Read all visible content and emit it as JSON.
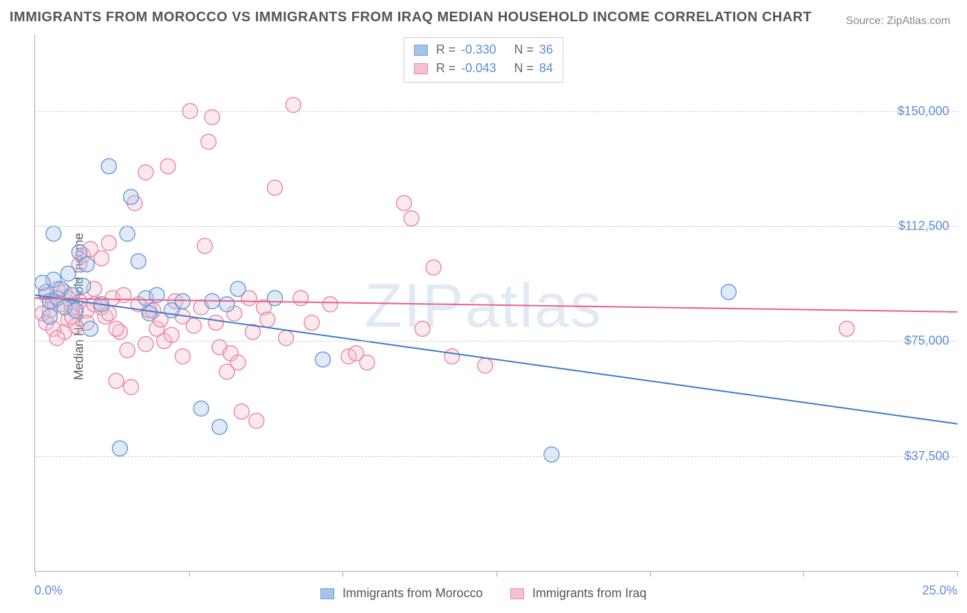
{
  "title": "IMMIGRANTS FROM MOROCCO VS IMMIGRANTS FROM IRAQ MEDIAN HOUSEHOLD INCOME CORRELATION CHART",
  "source_label": "Source: ",
  "source_name": "ZipAtlas.com",
  "y_axis_label": "Median Household Income",
  "watermark": "ZIPatlas",
  "chart": {
    "type": "scatter",
    "xlim": [
      0.0,
      25.0
    ],
    "ylim": [
      0,
      175000
    ],
    "x_min_label": "0.0%",
    "x_max_label": "25.0%",
    "y_ticks": [
      37500,
      75000,
      112500,
      150000
    ],
    "y_tick_labels": [
      "$37,500",
      "$75,000",
      "$112,500",
      "$150,000"
    ],
    "x_tick_positions": [
      0,
      4.17,
      8.33,
      12.5,
      16.67,
      20.83,
      25.0
    ],
    "background_color": "#ffffff",
    "grid_color": "#cccccc",
    "axis_color": "#aaaaaa",
    "text_color": "#555555",
    "value_color": "#5b8dd6",
    "marker_radius": 11,
    "marker_stroke_width": 1.5,
    "marker_fill_opacity": 0.35,
    "line_width": 2,
    "series": [
      {
        "name": "Immigrants from Morocco",
        "color_fill": "#a7c4e8",
        "color_stroke": "#6a9bd8",
        "line_color": "#3a78cc",
        "R": "-0.330",
        "N": "36",
        "trend_line": {
          "x1": 0.0,
          "y1": 90000,
          "x2": 25.0,
          "y2": 48000
        },
        "points": [
          {
            "x": 0.3,
            "y": 91000
          },
          {
            "x": 0.4,
            "y": 88000
          },
          {
            "x": 0.5,
            "y": 95000
          },
          {
            "x": 0.6,
            "y": 89000
          },
          {
            "x": 0.7,
            "y": 92000
          },
          {
            "x": 0.8,
            "y": 86000
          },
          {
            "x": 0.5,
            "y": 110000
          },
          {
            "x": 1.2,
            "y": 104000
          },
          {
            "x": 1.4,
            "y": 100000
          },
          {
            "x": 1.0,
            "y": 90000
          },
          {
            "x": 1.3,
            "y": 93000
          },
          {
            "x": 0.9,
            "y": 97000
          },
          {
            "x": 1.5,
            "y": 79000
          },
          {
            "x": 2.0,
            "y": 132000
          },
          {
            "x": 2.5,
            "y": 110000
          },
          {
            "x": 2.6,
            "y": 122000
          },
          {
            "x": 2.8,
            "y": 101000
          },
          {
            "x": 2.3,
            "y": 40000
          },
          {
            "x": 3.0,
            "y": 89000
          },
          {
            "x": 3.1,
            "y": 84000
          },
          {
            "x": 3.3,
            "y": 90000
          },
          {
            "x": 3.7,
            "y": 85000
          },
          {
            "x": 4.0,
            "y": 88000
          },
          {
            "x": 4.5,
            "y": 53000
          },
          {
            "x": 4.8,
            "y": 88000
          },
          {
            "x": 5.0,
            "y": 47000
          },
          {
            "x": 5.2,
            "y": 87000
          },
          {
            "x": 5.5,
            "y": 92000
          },
          {
            "x": 6.5,
            "y": 89000
          },
          {
            "x": 7.8,
            "y": 69000
          },
          {
            "x": 14.0,
            "y": 38000
          },
          {
            "x": 18.8,
            "y": 91000
          },
          {
            "x": 1.8,
            "y": 87000
          },
          {
            "x": 1.1,
            "y": 85000
          },
          {
            "x": 0.4,
            "y": 83000
          },
          {
            "x": 0.2,
            "y": 94000
          }
        ]
      },
      {
        "name": "Immigrants from Iraq",
        "color_fill": "#f6c0cf",
        "color_stroke": "#e88aa5",
        "line_color": "#e85d87",
        "R": "-0.043",
        "N": "84",
        "trend_line": {
          "x1": 0.0,
          "y1": 89000,
          "x2": 25.0,
          "y2": 84500
        },
        "points": [
          {
            "x": 0.3,
            "y": 90000
          },
          {
            "x": 0.4,
            "y": 85000
          },
          {
            "x": 0.5,
            "y": 88000
          },
          {
            "x": 0.6,
            "y": 92000
          },
          {
            "x": 0.7,
            "y": 87000
          },
          {
            "x": 0.8,
            "y": 78000
          },
          {
            "x": 0.9,
            "y": 82000
          },
          {
            "x": 1.0,
            "y": 86000
          },
          {
            "x": 1.1,
            "y": 80000
          },
          {
            "x": 1.2,
            "y": 100000
          },
          {
            "x": 1.3,
            "y": 103000
          },
          {
            "x": 1.4,
            "y": 85000
          },
          {
            "x": 1.5,
            "y": 105000
          },
          {
            "x": 1.6,
            "y": 87000
          },
          {
            "x": 1.8,
            "y": 102000
          },
          {
            "x": 1.9,
            "y": 83000
          },
          {
            "x": 2.0,
            "y": 107000
          },
          {
            "x": 2.1,
            "y": 89000
          },
          {
            "x": 2.3,
            "y": 78000
          },
          {
            "x": 2.2,
            "y": 62000
          },
          {
            "x": 2.5,
            "y": 72000
          },
          {
            "x": 2.6,
            "y": 60000
          },
          {
            "x": 2.7,
            "y": 120000
          },
          {
            "x": 3.0,
            "y": 130000
          },
          {
            "x": 3.1,
            "y": 85000
          },
          {
            "x": 3.3,
            "y": 79000
          },
          {
            "x": 3.5,
            "y": 75000
          },
          {
            "x": 3.6,
            "y": 132000
          },
          {
            "x": 3.8,
            "y": 88000
          },
          {
            "x": 4.0,
            "y": 70000
          },
          {
            "x": 4.2,
            "y": 150000
          },
          {
            "x": 4.6,
            "y": 106000
          },
          {
            "x": 4.7,
            "y": 140000
          },
          {
            "x": 4.8,
            "y": 148000
          },
          {
            "x": 5.0,
            "y": 73000
          },
          {
            "x": 5.2,
            "y": 65000
          },
          {
            "x": 5.3,
            "y": 71000
          },
          {
            "x": 5.5,
            "y": 68000
          },
          {
            "x": 5.6,
            "y": 52000
          },
          {
            "x": 5.8,
            "y": 89000
          },
          {
            "x": 6.0,
            "y": 49000
          },
          {
            "x": 6.2,
            "y": 86000
          },
          {
            "x": 6.5,
            "y": 125000
          },
          {
            "x": 7.0,
            "y": 152000
          },
          {
            "x": 7.2,
            "y": 89000
          },
          {
            "x": 8.0,
            "y": 87000
          },
          {
            "x": 8.5,
            "y": 70000
          },
          {
            "x": 8.7,
            "y": 71000
          },
          {
            "x": 9.0,
            "y": 68000
          },
          {
            "x": 10.0,
            "y": 120000
          },
          {
            "x": 10.2,
            "y": 115000
          },
          {
            "x": 10.5,
            "y": 79000
          },
          {
            "x": 10.8,
            "y": 99000
          },
          {
            "x": 11.3,
            "y": 70000
          },
          {
            "x": 12.2,
            "y": 67000
          },
          {
            "x": 22.0,
            "y": 79000
          },
          {
            "x": 0.2,
            "y": 84000
          },
          {
            "x": 0.3,
            "y": 81000
          },
          {
            "x": 0.5,
            "y": 79000
          },
          {
            "x": 0.6,
            "y": 76000
          },
          {
            "x": 0.8,
            "y": 91000
          },
          {
            "x": 0.9,
            "y": 89000
          },
          {
            "x": 1.0,
            "y": 83000
          },
          {
            "x": 1.2,
            "y": 88000
          },
          {
            "x": 1.4,
            "y": 81000
          },
          {
            "x": 1.6,
            "y": 92000
          },
          {
            "x": 1.8,
            "y": 86000
          },
          {
            "x": 2.0,
            "y": 84000
          },
          {
            "x": 2.2,
            "y": 79000
          },
          {
            "x": 2.4,
            "y": 90000
          },
          {
            "x": 2.8,
            "y": 87000
          },
          {
            "x": 3.0,
            "y": 74000
          },
          {
            "x": 3.2,
            "y": 85000
          },
          {
            "x": 3.4,
            "y": 82000
          },
          {
            "x": 3.7,
            "y": 77000
          },
          {
            "x": 4.0,
            "y": 83000
          },
          {
            "x": 4.3,
            "y": 80000
          },
          {
            "x": 4.5,
            "y": 86000
          },
          {
            "x": 4.9,
            "y": 81000
          },
          {
            "x": 5.4,
            "y": 84000
          },
          {
            "x": 5.9,
            "y": 78000
          },
          {
            "x": 6.3,
            "y": 82000
          },
          {
            "x": 6.8,
            "y": 76000
          },
          {
            "x": 7.5,
            "y": 81000
          }
        ]
      }
    ]
  },
  "legend_labels": {
    "R_label": "R =",
    "N_label": "N =",
    "series1": "Immigrants from Morocco",
    "series2": "Immigrants from Iraq"
  }
}
